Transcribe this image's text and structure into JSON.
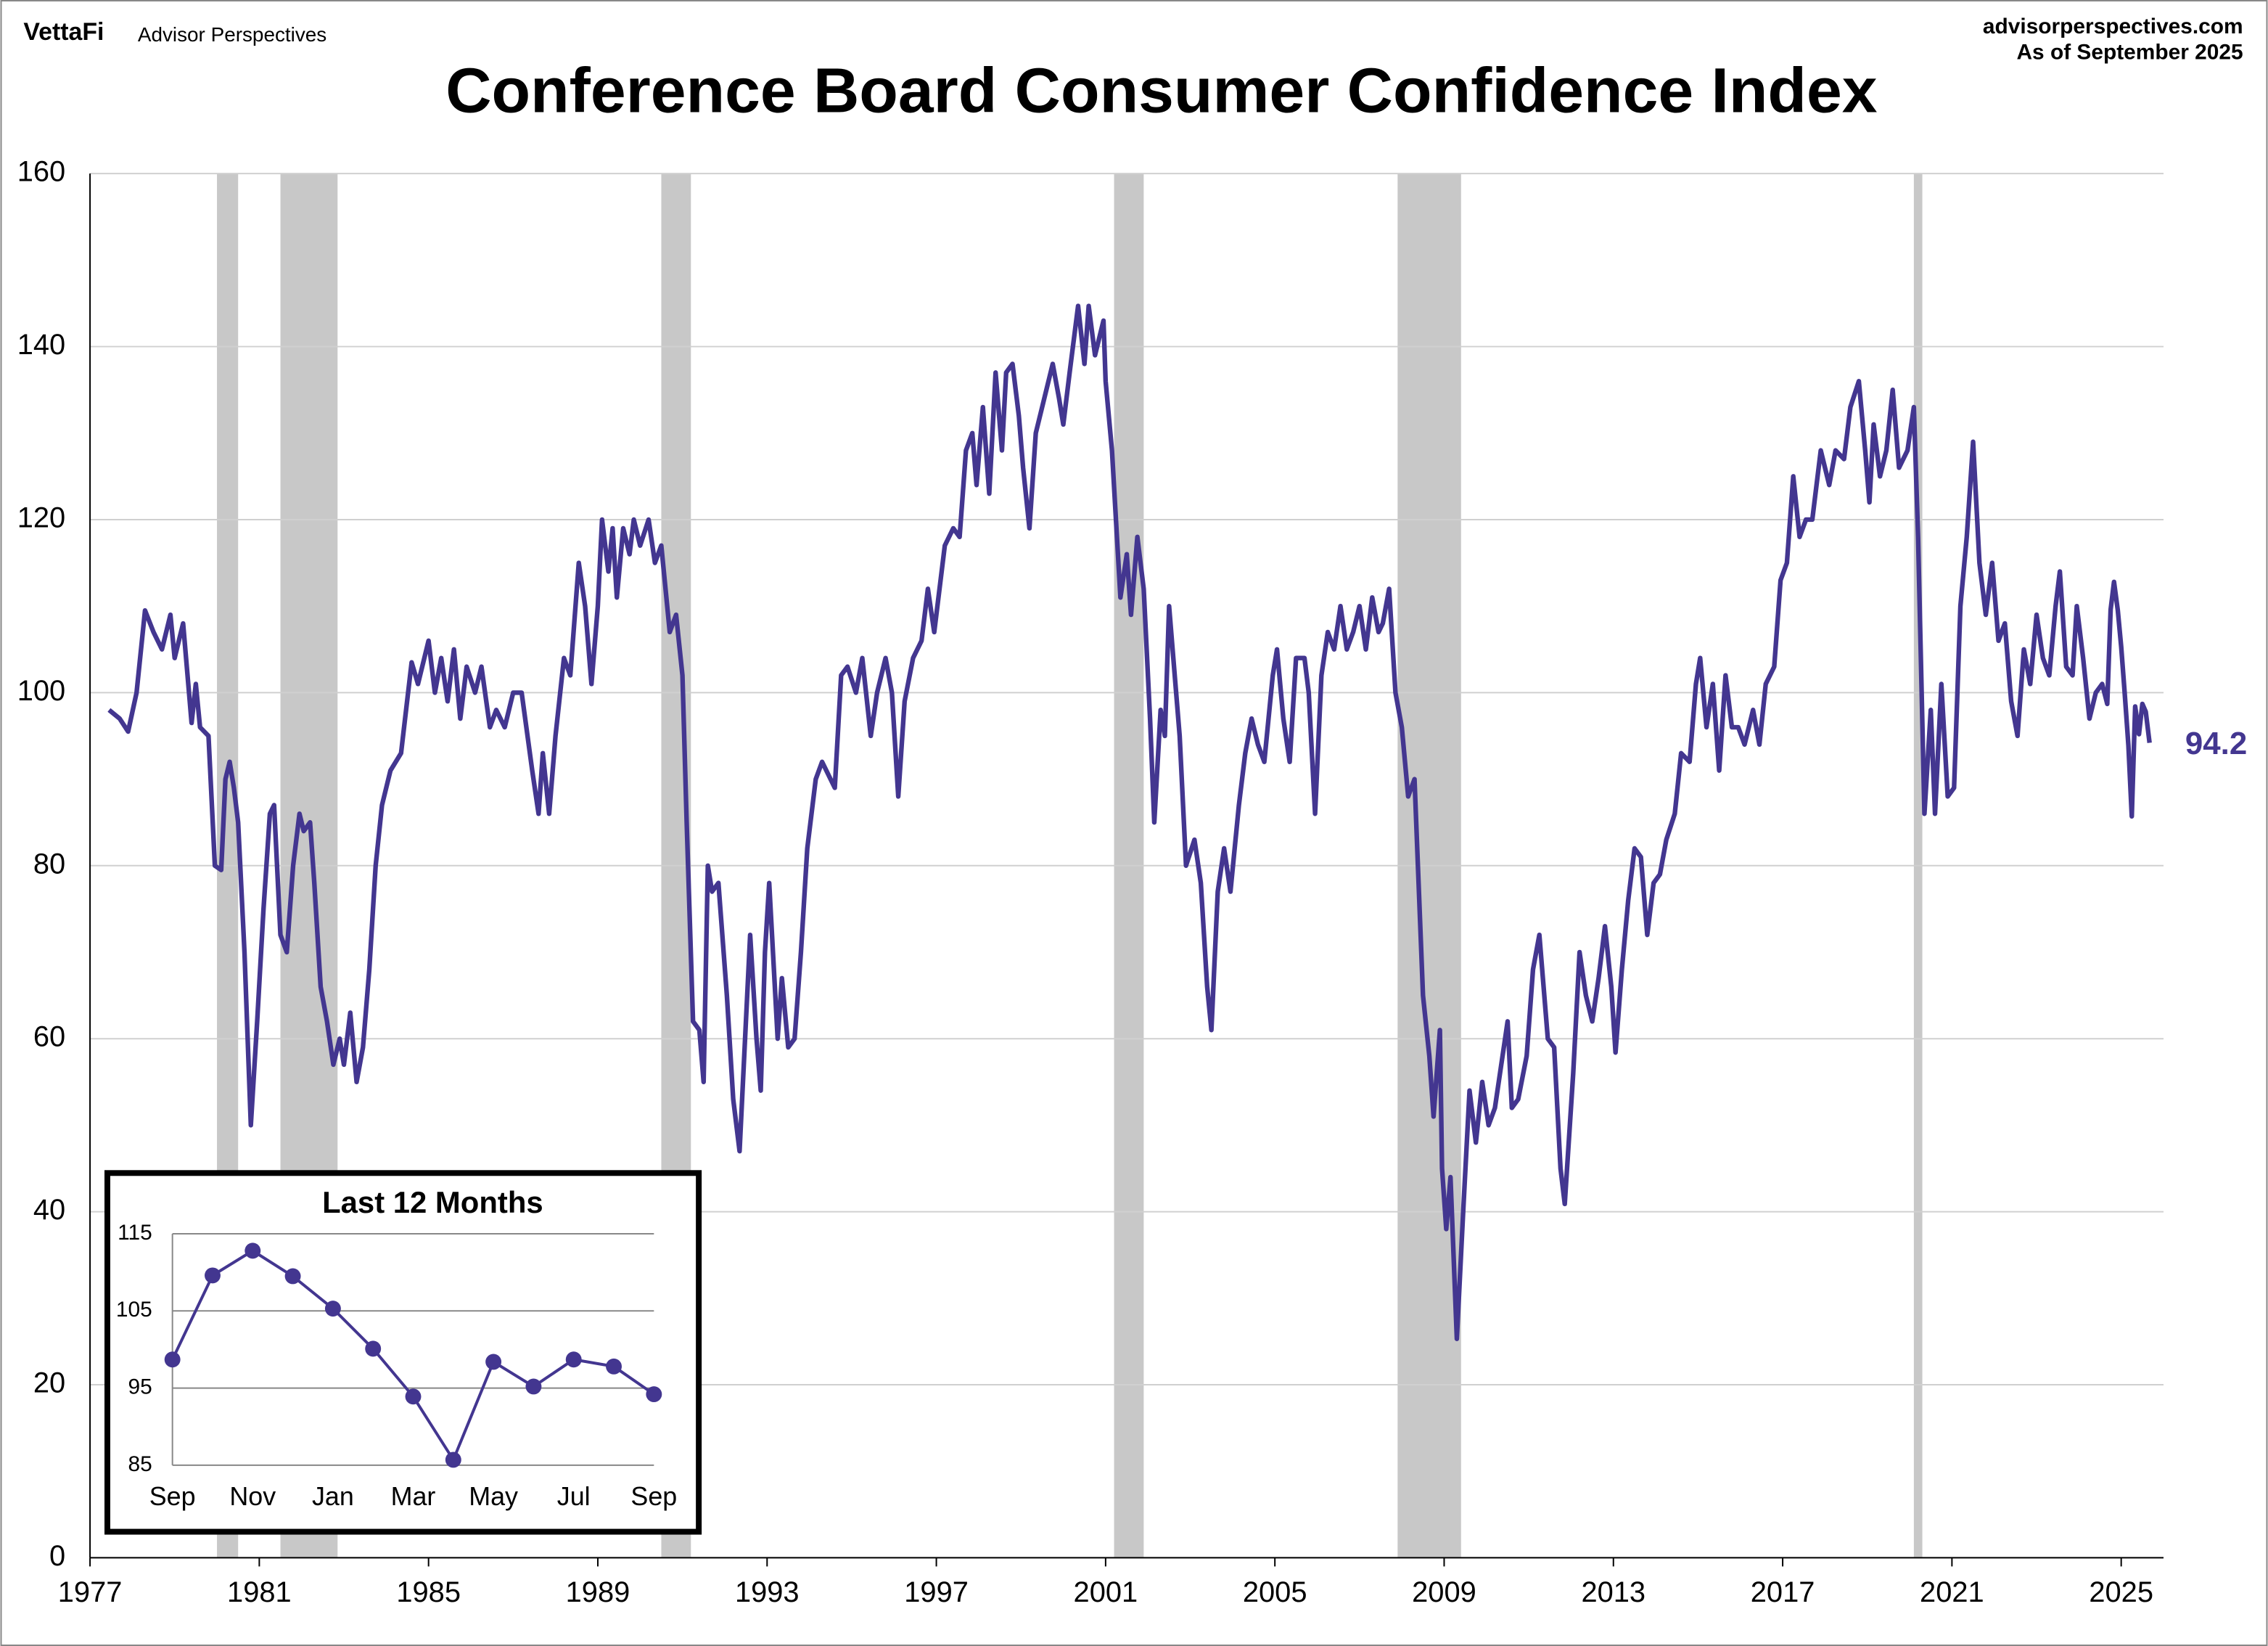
{
  "header": {
    "brand": "VettaFi",
    "publisher": "Advisor Perspectives",
    "site": "advisorperspectives.com",
    "as_of": "As of September 2025"
  },
  "chart_data": [
    {
      "type": "line",
      "title": "Conference Board Consumer Confidence Index",
      "color": "#433690",
      "grid": true,
      "xlim": [
        1977,
        2026
      ],
      "ylim": [
        0,
        160
      ],
      "xticks": [
        1977,
        1981,
        1985,
        1989,
        1993,
        1997,
        2001,
        2005,
        2009,
        2013,
        2017,
        2021,
        2025
      ],
      "yticks": [
        0,
        20,
        40,
        60,
        80,
        100,
        120,
        140,
        160
      ],
      "recessions": [
        [
          1980.0,
          1980.5
        ],
        [
          1981.5,
          1982.85
        ],
        [
          1990.5,
          1991.2
        ],
        [
          2001.2,
          2001.9
        ],
        [
          2007.9,
          2009.4
        ],
        [
          2020.1,
          2020.3
        ]
      ],
      "x": [
        1977.45,
        1977.7,
        1977.9,
        1978.1,
        1978.3,
        1978.5,
        1978.7,
        1978.9,
        1979.0,
        1979.2,
        1979.4,
        1979.5,
        1979.6,
        1979.8,
        1979.95,
        1980.1,
        1980.2,
        1980.3,
        1980.4,
        1980.5,
        1980.65,
        1980.8,
        1980.95,
        1981.1,
        1981.25,
        1981.35,
        1981.5,
        1981.65,
        1981.8,
        1981.95,
        1982.05,
        1982.2,
        1982.3,
        1982.45,
        1982.6,
        1982.75,
        1982.9,
        1983.0,
        1983.15,
        1983.3,
        1983.45,
        1983.6,
        1983.75,
        1983.9,
        1984.1,
        1984.35,
        1984.6,
        1984.75,
        1984.9,
        1985.0,
        1985.15,
        1985.3,
        1985.45,
        1985.6,
        1985.75,
        1985.9,
        1986.1,
        1986.25,
        1986.45,
        1986.6,
        1986.8,
        1987.0,
        1987.2,
        1987.45,
        1987.6,
        1987.7,
        1987.85,
        1988.0,
        1988.2,
        1988.35,
        1988.55,
        1988.7,
        1988.85,
        1989.0,
        1989.1,
        1989.25,
        1989.35,
        1989.45,
        1989.6,
        1989.75,
        1989.85,
        1990.0,
        1990.2,
        1990.35,
        1990.5,
        1990.7,
        1990.85,
        1991.0,
        1991.1,
        1991.25,
        1991.4,
        1991.5,
        1991.6,
        1991.7,
        1991.85,
        1992.05,
        1992.2,
        1992.35,
        1992.5,
        1992.6,
        1992.75,
        1992.85,
        1992.95,
        1993.05,
        1993.25,
        1993.35,
        1993.5,
        1993.65,
        1993.8,
        1993.95,
        1994.15,
        1994.3,
        1994.6,
        1994.75,
        1994.9,
        1995.1,
        1995.25,
        1995.45,
        1995.6,
        1995.8,
        1995.95,
        1996.1,
        1996.25,
        1996.45,
        1996.65,
        1996.8,
        1996.95,
        1997.2,
        1997.4,
        1997.55,
        1997.7,
        1997.85,
        1997.95,
        1998.1,
        1998.25,
        1998.4,
        1998.55,
        1998.65,
        1998.8,
        1998.95,
        1999.05,
        1999.2,
        1999.35,
        1999.55,
        1999.75,
        1999.9,
        2000.0,
        2000.15,
        2000.35,
        2000.5,
        2000.6,
        2000.75,
        2000.95,
        2001.0,
        2001.15,
        2001.35,
        2001.5,
        2001.6,
        2001.75,
        2001.9,
        2002.05,
        2002.15,
        2002.3,
        2002.4,
        2002.5,
        2002.6,
        2002.75,
        2002.9,
        2003.1,
        2003.25,
        2003.4,
        2003.5,
        2003.65,
        2003.8,
        2003.95,
        2004.15,
        2004.3,
        2004.45,
        2004.6,
        2004.75,
        2004.95,
        2005.05,
        2005.2,
        2005.35,
        2005.5,
        2005.7,
        2005.8,
        2005.95,
        2006.1,
        2006.25,
        2006.4,
        2006.55,
        2006.7,
        2006.85,
        2007.0,
        2007.15,
        2007.3,
        2007.45,
        2007.55,
        2007.7,
        2007.85,
        2008.0,
        2008.15,
        2008.3,
        2008.5,
        2008.65,
        2008.75,
        2008.9,
        2008.95,
        2009.05,
        2009.15,
        2009.3,
        2009.45,
        2009.6,
        2009.75,
        2009.9,
        2010.05,
        2010.2,
        2010.35,
        2010.5,
        2010.6,
        2010.75,
        2010.95,
        2011.1,
        2011.25,
        2011.45,
        2011.6,
        2011.75,
        2011.85,
        2012.05,
        2012.2,
        2012.35,
        2012.5,
        2012.65,
        2012.8,
        2012.95,
        2013.05,
        2013.2,
        2013.35,
        2013.5,
        2013.65,
        2013.8,
        2013.95,
        2014.1,
        2014.25,
        2014.45,
        2014.6,
        2014.8,
        2014.95,
        2015.05,
        2015.2,
        2015.35,
        2015.5,
        2015.65,
        2015.8,
        2015.95,
        2016.1,
        2016.3,
        2016.45,
        2016.6,
        2016.8,
        2016.95,
        2017.1,
        2017.25,
        2017.4,
        2017.55,
        2017.7,
        2017.9,
        2018.1,
        2018.25,
        2018.45,
        2018.6,
        2018.8,
        2018.95,
        2019.05,
        2019.15,
        2019.3,
        2019.45,
        2019.6,
        2019.75,
        2019.95,
        2020.1,
        2020.2,
        2020.35,
        2020.5,
        2020.6,
        2020.75,
        2020.9,
        2021.05,
        2021.2,
        2021.35,
        2021.5,
        2021.65,
        2021.8,
        2021.95,
        2022.1,
        2022.25,
        2022.4,
        2022.55,
        2022.7,
        2022.85,
        2023.0,
        2023.15,
        2023.3,
        2023.45,
        2023.55,
        2023.7,
        2023.85,
        2023.95,
        2024.1,
        2024.25,
        2024.4,
        2024.55,
        2024.67,
        2024.75,
        2024.83,
        2024.92,
        2025.0,
        2025.08,
        2025.17,
        2025.25,
        2025.33,
        2025.42,
        2025.5,
        2025.58,
        2025.67
      ],
      "values": [
        98,
        97,
        95.5,
        100,
        109.5,
        107,
        105,
        109,
        104,
        108,
        96.5,
        101,
        96,
        95,
        80,
        79.5,
        90,
        92,
        89,
        85,
        70,
        50,
        62,
        75,
        86,
        87,
        72,
        70,
        80,
        86,
        84,
        85,
        78,
        66,
        62,
        57,
        60,
        57,
        63,
        55,
        59,
        68,
        80,
        87,
        91,
        93,
        103.5,
        101,
        104,
        106,
        100,
        104,
        99,
        105,
        97,
        103,
        100,
        103,
        96,
        98,
        96,
        100,
        100,
        91,
        86,
        93,
        86,
        95,
        104,
        102,
        115,
        110,
        101,
        110,
        120,
        114,
        119,
        111,
        119,
        116,
        120,
        117,
        120,
        115,
        117,
        107,
        109,
        102,
        85,
        62,
        61,
        55,
        80,
        77,
        78,
        65,
        53,
        47,
        62,
        72,
        60,
        54,
        70,
        78,
        60,
        67,
        59,
        60,
        70,
        82,
        90,
        92,
        89,
        102,
        103,
        100,
        104,
        95,
        100,
        104,
        100,
        88,
        99,
        104,
        106,
        112,
        107,
        117,
        119,
        118,
        128,
        130,
        124,
        133,
        123,
        137,
        128,
        137,
        138,
        132,
        126,
        119,
        130,
        134,
        138,
        134,
        131,
        137,
        144.7,
        138,
        144.7,
        139,
        143,
        136,
        128,
        111,
        116,
        109,
        118,
        112,
        97,
        85,
        98,
        95,
        110,
        104,
        95,
        80,
        83,
        78,
        66,
        61,
        77,
        82,
        77,
        87,
        93,
        97,
        94,
        92,
        102,
        105,
        97,
        92,
        104,
        104,
        100,
        86,
        102,
        107,
        105,
        110,
        105,
        107,
        110,
        105,
        111,
        107,
        108,
        112,
        100,
        96,
        88,
        90,
        65,
        58,
        51,
        61,
        45,
        38,
        44,
        25.3,
        40,
        54,
        48,
        55,
        50,
        52,
        57,
        62,
        52,
        53,
        58,
        68,
        72,
        60,
        59,
        45,
        40.9,
        56,
        70,
        65,
        62,
        67,
        73,
        66,
        58.4,
        68,
        76,
        82,
        81,
        72,
        78,
        79,
        83,
        86,
        93,
        92,
        101,
        104,
        96,
        101,
        91,
        102,
        96,
        96,
        94,
        98,
        94,
        101,
        103,
        113,
        115,
        125,
        118,
        120,
        120,
        128,
        124,
        128,
        127,
        133,
        136,
        128,
        122,
        131,
        125,
        128,
        135,
        126,
        128,
        133,
        118,
        86,
        98,
        86,
        101,
        88,
        89,
        110,
        118,
        129,
        115,
        109,
        115,
        106,
        108,
        99,
        95,
        105,
        101,
        109,
        104,
        102,
        110,
        114,
        103,
        102,
        110,
        104,
        97,
        100,
        101,
        98.7,
        109.6,
        112.8,
        109.5,
        105.3,
        100.1,
        93.9,
        85.7,
        98.4,
        95.2,
        98.7,
        97.8,
        94.2
      ]
    },
    {
      "type": "inset-line",
      "title": "Last 12 Months",
      "color": "#433690",
      "grid": true,
      "categories": [
        "Sep",
        null,
        "Nov",
        null,
        "Jan",
        null,
        "Mar",
        null,
        "May",
        null,
        "Jul",
        null,
        "Sep"
      ],
      "values": [
        98.7,
        109.6,
        112.8,
        109.5,
        105.3,
        100.1,
        93.9,
        85.7,
        98.4,
        95.2,
        98.7,
        97.8,
        94.2
      ],
      "ylim": [
        85,
        115
      ],
      "yticks": [
        85,
        95,
        105,
        115
      ]
    }
  ]
}
